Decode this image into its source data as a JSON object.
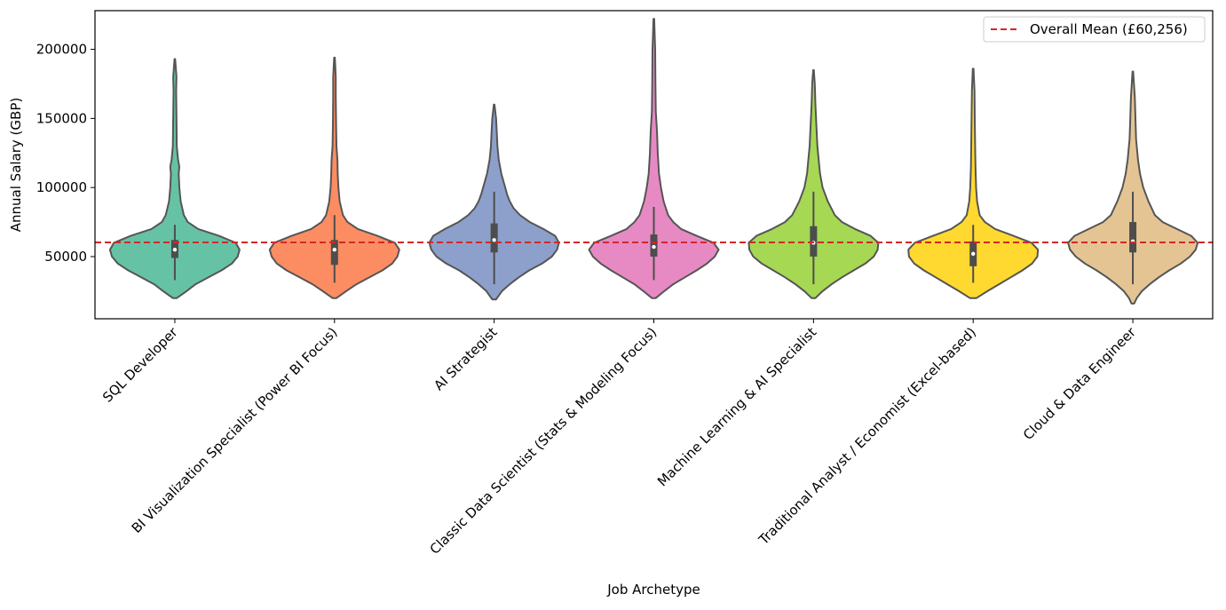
{
  "chart_data": {
    "type": "violin",
    "xlabel": "Job Archetype",
    "ylabel": "Annual Salary (GBP)",
    "ylim": [
      5000,
      228000
    ],
    "yticks": [
      50000,
      100000,
      150000,
      200000
    ],
    "grid": false,
    "legend_position": "top-right",
    "reference_line": {
      "label": "Overall Mean (£60,256)",
      "value": 60256,
      "color": "#d62728",
      "style": "dashed"
    },
    "categories": [
      "SQL Developer",
      "BI Visualization Specialist (Power BI Focus)",
      "AI Strategist",
      "Classic Data Scientist (Stats & Modeling Focus)",
      "Machine Learning & AI Specialist",
      "Traditional Analyst / Economist (Excel-based)",
      "Cloud & Data Engineer"
    ],
    "series": [
      {
        "color": "#66c2a5",
        "min": 20000,
        "max": 193000,
        "q1": 49000,
        "median": 55000,
        "q3": 62000,
        "whisker_low": 33000,
        "whisker_high": 73000,
        "density": [
          [
            20000,
            0.03
          ],
          [
            25000,
            0.18
          ],
          [
            30000,
            0.32
          ],
          [
            35000,
            0.52
          ],
          [
            40000,
            0.72
          ],
          [
            45000,
            0.88
          ],
          [
            50000,
            0.97
          ],
          [
            55000,
            1.0
          ],
          [
            60000,
            0.94
          ],
          [
            65000,
            0.68
          ],
          [
            70000,
            0.36
          ],
          [
            75000,
            0.2
          ],
          [
            80000,
            0.14
          ],
          [
            90000,
            0.09
          ],
          [
            100000,
            0.07
          ],
          [
            110000,
            0.06
          ],
          [
            115000,
            0.07
          ],
          [
            120000,
            0.05
          ],
          [
            130000,
            0.03
          ],
          [
            150000,
            0.025
          ],
          [
            170000,
            0.02
          ],
          [
            180000,
            0.025
          ],
          [
            193000,
            0.005
          ]
        ]
      },
      {
        "color": "#fc8d62",
        "min": 20000,
        "max": 194000,
        "q1": 44000,
        "median": 55000,
        "q3": 62000,
        "whisker_low": 31000,
        "whisker_high": 80000,
        "density": [
          [
            20000,
            0.03
          ],
          [
            25000,
            0.18
          ],
          [
            30000,
            0.34
          ],
          [
            35000,
            0.54
          ],
          [
            40000,
            0.74
          ],
          [
            45000,
            0.89
          ],
          [
            50000,
            0.97
          ],
          [
            55000,
            1.0
          ],
          [
            60000,
            0.93
          ],
          [
            65000,
            0.66
          ],
          [
            70000,
            0.36
          ],
          [
            75000,
            0.2
          ],
          [
            80000,
            0.13
          ],
          [
            90000,
            0.08
          ],
          [
            100000,
            0.06
          ],
          [
            110000,
            0.05
          ],
          [
            120000,
            0.045
          ],
          [
            130000,
            0.03
          ],
          [
            145000,
            0.025
          ],
          [
            165000,
            0.02
          ],
          [
            180000,
            0.02
          ],
          [
            194000,
            0.005
          ]
        ]
      },
      {
        "color": "#8da0cb",
        "min": 19000,
        "max": 160000,
        "q1": 53000,
        "median": 62000,
        "q3": 74000,
        "whisker_low": 30000,
        "whisker_high": 97000,
        "density": [
          [
            19000,
            0.03
          ],
          [
            25000,
            0.12
          ],
          [
            30000,
            0.24
          ],
          [
            35000,
            0.38
          ],
          [
            40000,
            0.54
          ],
          [
            45000,
            0.74
          ],
          [
            50000,
            0.89
          ],
          [
            55000,
            0.97
          ],
          [
            60000,
            1.0
          ],
          [
            65000,
            0.94
          ],
          [
            70000,
            0.76
          ],
          [
            75000,
            0.55
          ],
          [
            80000,
            0.4
          ],
          [
            85000,
            0.3
          ],
          [
            90000,
            0.24
          ],
          [
            95000,
            0.2
          ],
          [
            100000,
            0.17
          ],
          [
            110000,
            0.11
          ],
          [
            120000,
            0.07
          ],
          [
            130000,
            0.05
          ],
          [
            140000,
            0.04
          ],
          [
            150000,
            0.03
          ],
          [
            160000,
            0.005
          ]
        ]
      },
      {
        "color": "#e78ac3",
        "min": 20000,
        "max": 222000,
        "q1": 50000,
        "median": 57000,
        "q3": 66000,
        "whisker_low": 33000,
        "whisker_high": 86000,
        "density": [
          [
            20000,
            0.03
          ],
          [
            25000,
            0.16
          ],
          [
            30000,
            0.3
          ],
          [
            35000,
            0.48
          ],
          [
            40000,
            0.66
          ],
          [
            45000,
            0.82
          ],
          [
            50000,
            0.94
          ],
          [
            55000,
            1.0
          ],
          [
            60000,
            0.92
          ],
          [
            65000,
            0.66
          ],
          [
            70000,
            0.42
          ],
          [
            75000,
            0.3
          ],
          [
            80000,
            0.22
          ],
          [
            90000,
            0.15
          ],
          [
            100000,
            0.11
          ],
          [
            110000,
            0.08
          ],
          [
            125000,
            0.06
          ],
          [
            140000,
            0.05
          ],
          [
            155000,
            0.03
          ],
          [
            175000,
            0.025
          ],
          [
            200000,
            0.02
          ],
          [
            222000,
            0.005
          ]
        ]
      },
      {
        "color": "#a6d854",
        "min": 20000,
        "max": 185000,
        "q1": 50000,
        "median": 60000,
        "q3": 72000,
        "whisker_low": 30000,
        "whisker_high": 97000,
        "density": [
          [
            20000,
            0.03
          ],
          [
            25000,
            0.14
          ],
          [
            30000,
            0.28
          ],
          [
            35000,
            0.44
          ],
          [
            40000,
            0.62
          ],
          [
            45000,
            0.8
          ],
          [
            50000,
            0.93
          ],
          [
            55000,
            0.99
          ],
          [
            60000,
            1.0
          ],
          [
            65000,
            0.88
          ],
          [
            70000,
            0.64
          ],
          [
            75000,
            0.44
          ],
          [
            80000,
            0.33
          ],
          [
            90000,
            0.22
          ],
          [
            100000,
            0.14
          ],
          [
            110000,
            0.1
          ],
          [
            120000,
            0.08
          ],
          [
            130000,
            0.06
          ],
          [
            145000,
            0.045
          ],
          [
            160000,
            0.03
          ],
          [
            175000,
            0.02
          ],
          [
            185000,
            0.005
          ]
        ]
      },
      {
        "color": "#ffd92f",
        "min": 20000,
        "max": 186000,
        "q1": 43000,
        "median": 52000,
        "q3": 61000,
        "whisker_low": 31000,
        "whisker_high": 73000,
        "density": [
          [
            20000,
            0.05
          ],
          [
            25000,
            0.22
          ],
          [
            30000,
            0.4
          ],
          [
            35000,
            0.58
          ],
          [
            40000,
            0.76
          ],
          [
            45000,
            0.91
          ],
          [
            50000,
            0.99
          ],
          [
            55000,
            1.0
          ],
          [
            60000,
            0.9
          ],
          [
            65000,
            0.62
          ],
          [
            70000,
            0.34
          ],
          [
            75000,
            0.18
          ],
          [
            80000,
            0.1
          ],
          [
            90000,
            0.06
          ],
          [
            100000,
            0.045
          ],
          [
            115000,
            0.035
          ],
          [
            130000,
            0.03
          ],
          [
            150000,
            0.025
          ],
          [
            170000,
            0.02
          ],
          [
            186000,
            0.005
          ]
        ]
      },
      {
        "color": "#e5c494",
        "min": 16000,
        "max": 184000,
        "q1": 53000,
        "median": 61000,
        "q3": 75000,
        "whisker_low": 30000,
        "whisker_high": 97000,
        "density": [
          [
            16000,
            0.02
          ],
          [
            20000,
            0.06
          ],
          [
            25000,
            0.14
          ],
          [
            30000,
            0.26
          ],
          [
            35000,
            0.4
          ],
          [
            40000,
            0.56
          ],
          [
            45000,
            0.74
          ],
          [
            50000,
            0.88
          ],
          [
            55000,
            0.97
          ],
          [
            60000,
            1.0
          ],
          [
            65000,
            0.9
          ],
          [
            70000,
            0.68
          ],
          [
            75000,
            0.46
          ],
          [
            80000,
            0.34
          ],
          [
            90000,
            0.24
          ],
          [
            100000,
            0.16
          ],
          [
            110000,
            0.11
          ],
          [
            120000,
            0.08
          ],
          [
            135000,
            0.05
          ],
          [
            150000,
            0.04
          ],
          [
            165000,
            0.03
          ],
          [
            184000,
            0.005
          ]
        ]
      }
    ]
  }
}
